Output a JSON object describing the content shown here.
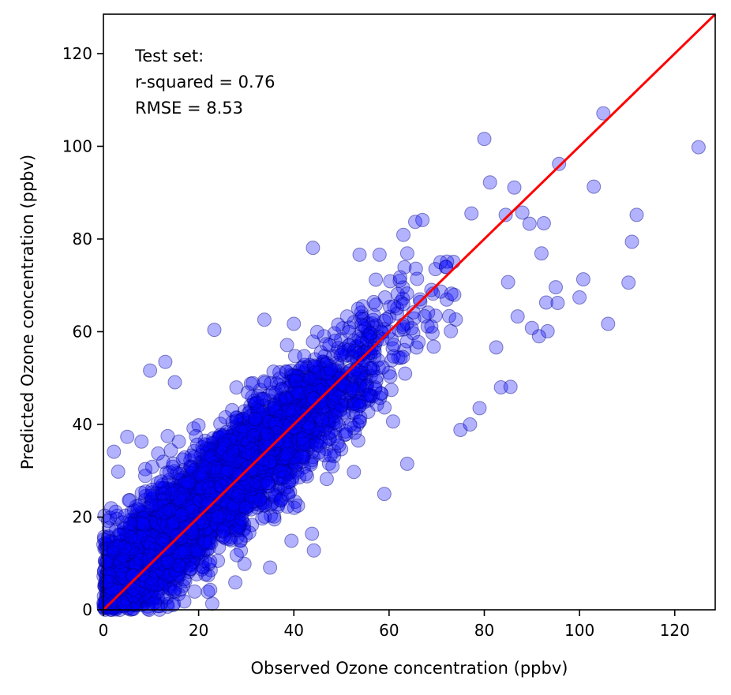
{
  "chart_data": {
    "type": "scatter",
    "xlabel": "Observed Ozone concentration (ppbv)",
    "ylabel": "Predicted Ozone concentration (ppbv)",
    "xlim": [
      0,
      128.5
    ],
    "ylim": [
      0,
      128.5
    ],
    "xticks": [
      0,
      20,
      40,
      60,
      80,
      100,
      120
    ],
    "yticks": [
      0,
      20,
      40,
      60,
      80,
      100,
      120
    ],
    "annotation": [
      "Test set:",
      "r-squared = 0.76",
      "RMSE = 8.53"
    ],
    "r_squared": 0.76,
    "rmse": 8.53,
    "marker_color": "#0000ff",
    "marker_edge_color": "#000080",
    "marker_alpha": 0.3,
    "line_color": "#ff0000",
    "grid": false,
    "reference_line": {
      "type": "identity",
      "x": [
        0,
        128.5
      ],
      "y": [
        0,
        128.5
      ]
    },
    "points": [
      [
        125,
        99.8
      ],
      [
        105,
        107.1
      ],
      [
        80,
        101.6
      ],
      [
        95.7,
        96.2
      ],
      [
        103,
        91.3
      ],
      [
        81.2,
        92.2
      ],
      [
        86.3,
        91.1
      ],
      [
        112,
        85.2
      ],
      [
        111,
        79.4
      ],
      [
        110.3,
        70.6
      ],
      [
        100.8,
        71.3
      ],
      [
        106,
        61.7
      ],
      [
        100,
        67.4
      ],
      [
        95,
        69.6
      ],
      [
        92,
        76.9
      ],
      [
        92.5,
        83.4
      ],
      [
        89.5,
        83.3
      ],
      [
        88,
        85.7
      ],
      [
        84.5,
        85.2
      ],
      [
        77.3,
        85.5
      ],
      [
        44,
        78.1
      ],
      [
        53.8,
        76.6
      ],
      [
        58,
        76.6
      ],
      [
        65.5,
        83.7
      ],
      [
        67,
        84.1
      ],
      [
        63,
        80.9
      ],
      [
        33.8,
        62.6
      ],
      [
        40,
        61.7
      ],
      [
        23.3,
        60.4
      ],
      [
        9.8,
        51.6
      ],
      [
        13,
        53.5
      ],
      [
        2.2,
        34.1
      ],
      [
        3.1,
        29.8
      ],
      [
        5,
        37.3
      ],
      [
        15,
        49.1
      ],
      [
        8,
        36.3
      ],
      [
        44.2,
        12.8
      ],
      [
        43.8,
        16.4
      ],
      [
        39.5,
        14.9
      ],
      [
        35,
        9.1
      ],
      [
        27.7,
        5.9
      ],
      [
        28,
        11.8
      ],
      [
        17,
        1.8
      ],
      [
        14.8,
        1.3
      ],
      [
        10.8,
        1.5
      ],
      [
        59,
        25
      ],
      [
        63.8,
        31.5
      ],
      [
        75,
        38.8
      ],
      [
        77,
        40
      ],
      [
        83.5,
        48
      ],
      [
        85.5,
        48.1
      ],
      [
        79,
        43.5
      ],
      [
        82.5,
        56.6
      ],
      [
        87,
        63.3
      ],
      [
        90,
        60.8
      ],
      [
        93.3,
        60.1
      ],
      [
        91.5,
        59
      ],
      [
        95.4,
        66.2
      ],
      [
        93,
        66.3
      ],
      [
        85,
        70.7
      ]
    ],
    "dense_band": {
      "seed": 7,
      "count": 3800,
      "x_range": [
        0,
        75
      ],
      "slope": 0.9,
      "intercept": 3.5,
      "spread": 8.53
    }
  }
}
